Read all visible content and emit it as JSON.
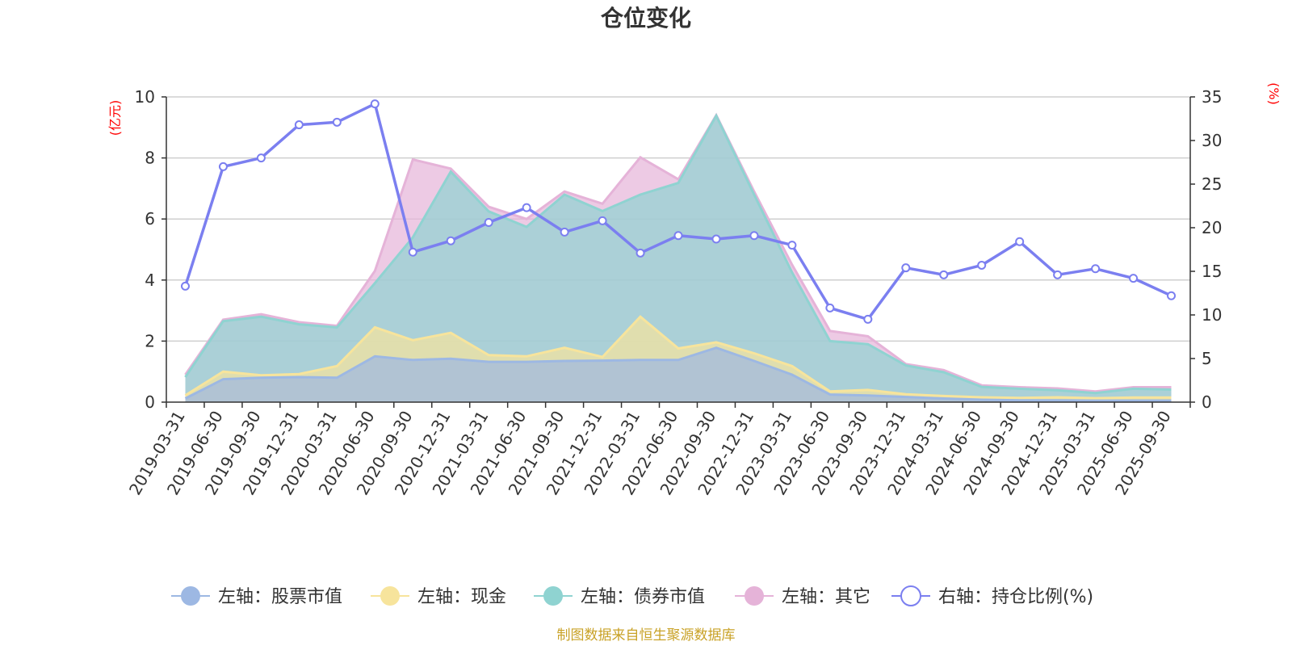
{
  "colors": {
    "stock": "#9db8e3",
    "cash": "#f7e49c",
    "bond": "#8fd3d1",
    "other": "#e5b3d8",
    "ratio": "#7b7ff0",
    "unit": "#ff0000",
    "source": "#c9a227"
  },
  "chart_data": {
    "type": "area",
    "title": "仓位变化",
    "left_unit": "(亿元)",
    "right_unit": "(%)",
    "left_ylim": [
      0,
      10
    ],
    "left_ticks": [
      0,
      2,
      4,
      6,
      8,
      10
    ],
    "right_ylim": [
      0,
      35
    ],
    "right_ticks": [
      0,
      5,
      10,
      15,
      20,
      25,
      30,
      35
    ],
    "x": [
      "2019-03-31",
      "2019-06-30",
      "2019-09-30",
      "2019-12-31",
      "2020-03-31",
      "2020-06-30",
      "2020-09-30",
      "2020-12-31",
      "2021-03-31",
      "2021-06-30",
      "2021-09-30",
      "2021-12-31",
      "2022-03-31",
      "2022-06-30",
      "2022-09-30",
      "2022-12-31",
      "2023-03-31",
      "2023-06-30",
      "2023-09-30",
      "2023-12-31",
      "2024-03-31",
      "2024-06-30",
      "2024-09-30",
      "2024-12-31",
      "2025-03-31",
      "2025-06-30",
      "2025-09-30"
    ],
    "series": [
      {
        "name": "左轴：股票市值",
        "axis": "left",
        "values": [
          0.12,
          0.75,
          0.8,
          0.82,
          0.8,
          1.5,
          1.38,
          1.42,
          1.32,
          1.32,
          1.35,
          1.36,
          1.38,
          1.38,
          1.78,
          1.35,
          0.9,
          0.25,
          0.22,
          0.17,
          0.12,
          0.08,
          0.06,
          0.06,
          0.05,
          0.05,
          0.05
        ]
      },
      {
        "name": "左轴：现金",
        "axis": "left",
        "values": [
          0.1,
          0.25,
          0.08,
          0.1,
          0.38,
          0.95,
          0.65,
          0.85,
          0.22,
          0.18,
          0.43,
          0.12,
          1.42,
          0.38,
          0.18,
          0.25,
          0.28,
          0.1,
          0.18,
          0.09,
          0.08,
          0.08,
          0.08,
          0.1,
          0.08,
          0.1,
          0.1
        ]
      },
      {
        "name": "左轴：债券市值",
        "axis": "left",
        "values": [
          0.6,
          1.65,
          1.92,
          1.63,
          1.27,
          1.45,
          3.37,
          5.28,
          4.71,
          4.24,
          5.02,
          4.78,
          4.0,
          5.42,
          7.42,
          5.2,
          3.07,
          1.65,
          1.5,
          0.94,
          0.78,
          0.34,
          0.3,
          0.23,
          0.17,
          0.29,
          0.26
        ]
      },
      {
        "name": "左轴：其它",
        "axis": "left",
        "values": [
          0.08,
          0.05,
          0.08,
          0.07,
          0.05,
          0.4,
          2.55,
          0.1,
          0.15,
          0.26,
          0.1,
          0.24,
          1.22,
          0.12,
          0.02,
          0.1,
          0.25,
          0.33,
          0.26,
          0.05,
          0.07,
          0.05,
          0.05,
          0.06,
          0.05,
          0.05,
          0.08
        ]
      },
      {
        "name": "右轴：持仓比例(%)",
        "axis": "right",
        "values": [
          13.3,
          27.0,
          28.0,
          31.8,
          32.1,
          34.2,
          17.2,
          18.5,
          20.6,
          22.3,
          19.5,
          20.8,
          17.1,
          19.1,
          18.7,
          19.1,
          18.0,
          10.8,
          9.5,
          15.4,
          14.6,
          15.7,
          18.4,
          14.6,
          15.3,
          14.2,
          12.2
        ]
      }
    ]
  },
  "legend": {
    "items": [
      "左轴：股票市值",
      "左轴：现金",
      "左轴：债券市值",
      "左轴：其它",
      "右轴：持仓比例(%)"
    ]
  },
  "source_text": "制图数据来自恒生聚源数据库"
}
